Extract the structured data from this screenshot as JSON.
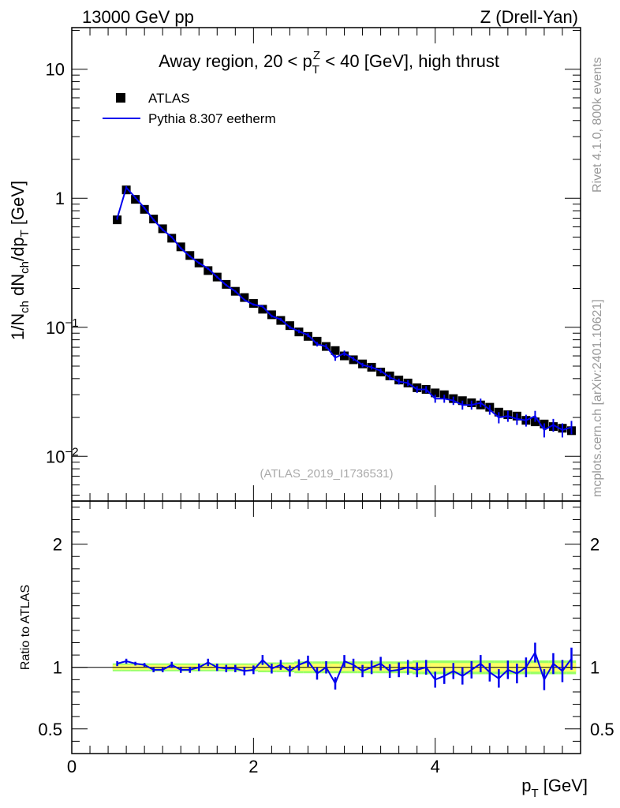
{
  "header": {
    "energy_label": "13000 GeV pp",
    "process_label": "Z (Drell-Yan)"
  },
  "side_labels": {
    "rivet": "Rivet 4.1.0,  800k events",
    "mcplots": "mcplots.cern.ch [arXiv:2401.10621]"
  },
  "watermark": "(ATLAS_2019_I1736531)",
  "colors": {
    "mc": "#0000ee",
    "band_inner": "#ffff66",
    "band_outer": "#99ff66",
    "data": "#000000"
  },
  "chart_data": [
    {
      "type": "scatter",
      "panel": "main",
      "title": "Away region, 20 < pTZ < 40 [GeV], high thrust",
      "title_parts": {
        "pre": "Away region, 20 < p",
        "sub": "T",
        "sup": "Z",
        "post": " < 40 [GeV], high thrust"
      },
      "ylabel": "1/Nch dNch/dpT [GeV]",
      "ylabel_parts": {
        "a": "1/N",
        "a_sub": "ch",
        "b": " dN",
        "b_sub": "ch",
        "c": "/dp",
        "c_sub": "T",
        "d": " [GeV]"
      },
      "yscale": "log",
      "ylim": [
        0.0045,
        21
      ],
      "xlim": [
        0,
        5.6
      ],
      "y_ticks": [
        {
          "value": 10,
          "label": "10"
        },
        {
          "value": 1,
          "label": "1"
        },
        {
          "value": 0.1,
          "label": "10",
          "exp": "−1"
        },
        {
          "value": 0.01,
          "label": "10",
          "exp": "−2"
        }
      ],
      "legend": [
        {
          "name": "ATLAS",
          "style": "marker"
        },
        {
          "name": "Pythia 8.307 eetherm",
          "style": "line"
        }
      ],
      "x": [
        0.5,
        0.6,
        0.7,
        0.8,
        0.9,
        1.0,
        1.1,
        1.2,
        1.3,
        1.4,
        1.5,
        1.6,
        1.7,
        1.8,
        1.9,
        2.0,
        2.1,
        2.2,
        2.3,
        2.4,
        2.5,
        2.6,
        2.7,
        2.8,
        2.9,
        3.0,
        3.1,
        3.2,
        3.3,
        3.4,
        3.5,
        3.6,
        3.7,
        3.8,
        3.9,
        4.0,
        4.1,
        4.2,
        4.3,
        4.4,
        4.5,
        4.6,
        4.7,
        4.8,
        4.9,
        5.0,
        5.1,
        5.2,
        5.3,
        5.4,
        5.5
      ],
      "series": [
        {
          "name": "ATLAS",
          "values": [
            0.68,
            1.16,
            0.98,
            0.82,
            0.69,
            0.58,
            0.49,
            0.42,
            0.36,
            0.315,
            0.275,
            0.245,
            0.215,
            0.19,
            0.17,
            0.153,
            0.138,
            0.125,
            0.113,
            0.103,
            0.092,
            0.085,
            0.078,
            0.071,
            0.066,
            0.06,
            0.056,
            0.052,
            0.049,
            0.045,
            0.042,
            0.039,
            0.037,
            0.034,
            0.033,
            0.031,
            0.03,
            0.028,
            0.027,
            0.026,
            0.025,
            0.024,
            0.022,
            0.021,
            0.0205,
            0.019,
            0.0185,
            0.0178,
            0.017,
            0.0165,
            0.0158
          ]
        },
        {
          "name": "Pythia 8.307 eetherm",
          "values": [
            0.7,
            1.21,
            1.01,
            0.84,
            0.68,
            0.57,
            0.5,
            0.41,
            0.355,
            0.315,
            0.285,
            0.245,
            0.212,
            0.19,
            0.163,
            0.15,
            0.145,
            0.122,
            0.115,
            0.1,
            0.093,
            0.087,
            0.074,
            0.071,
            0.058,
            0.063,
            0.057,
            0.051,
            0.049,
            0.046,
            0.041,
            0.038,
            0.037,
            0.033,
            0.033,
            0.028,
            0.028,
            0.027,
            0.025,
            0.025,
            0.026,
            0.023,
            0.02,
            0.0205,
            0.0195,
            0.019,
            0.0205,
            0.016,
            0.0175,
            0.016,
            0.0168
          ],
          "errors": [
            0.02,
            0.03,
            0.02,
            0.02,
            0.015,
            0.012,
            0.01,
            0.008,
            0.007,
            0.006,
            0.006,
            0.005,
            0.004,
            0.004,
            0.003,
            0.003,
            0.003,
            0.003,
            0.003,
            0.003,
            0.003,
            0.003,
            0.003,
            0.003,
            0.003,
            0.003,
            0.002,
            0.002,
            0.002,
            0.002,
            0.002,
            0.002,
            0.002,
            0.002,
            0.002,
            0.002,
            0.002,
            0.002,
            0.002,
            0.002,
            0.002,
            0.002,
            0.002,
            0.002,
            0.002,
            0.002,
            0.002,
            0.002,
            0.002,
            0.002,
            0.002
          ]
        }
      ]
    },
    {
      "type": "line",
      "panel": "ratio",
      "xlabel": "pT [GeV]",
      "xlabel_parts": {
        "main": "p",
        "sub": "T",
        "rest": " [GeV]"
      },
      "ylabel": "Ratio to ATLAS",
      "ylim": [
        0.3,
        2.35
      ],
      "xlim": [
        0,
        5.6
      ],
      "x_ticks": [
        0,
        2,
        4
      ],
      "y_ticks": [
        {
          "value": 0.5,
          "label": "0.5"
        },
        {
          "value": 1,
          "label": "1"
        },
        {
          "value": 2,
          "label": "2"
        }
      ],
      "x": [
        0.5,
        0.6,
        0.7,
        0.8,
        0.9,
        1.0,
        1.1,
        1.2,
        1.3,
        1.4,
        1.5,
        1.6,
        1.7,
        1.8,
        1.9,
        2.0,
        2.1,
        2.2,
        2.3,
        2.4,
        2.5,
        2.6,
        2.7,
        2.8,
        2.9,
        3.0,
        3.1,
        3.2,
        3.3,
        3.4,
        3.5,
        3.6,
        3.7,
        3.8,
        3.9,
        4.0,
        4.1,
        4.2,
        4.3,
        4.4,
        4.5,
        4.6,
        4.7,
        4.8,
        4.9,
        5.0,
        5.1,
        5.2,
        5.3,
        5.4,
        5.5
      ],
      "ratio": [
        1.03,
        1.05,
        1.03,
        1.02,
        0.98,
        0.98,
        1.02,
        0.98,
        0.98,
        1.0,
        1.04,
        1.0,
        0.99,
        0.99,
        0.97,
        0.98,
        1.06,
        0.99,
        1.02,
        0.97,
        1.02,
        1.05,
        0.95,
        1.0,
        0.87,
        1.05,
        1.02,
        0.97,
        1.0,
        1.03,
        0.97,
        0.98,
        1.0,
        0.98,
        1.0,
        0.9,
        0.93,
        0.97,
        0.93,
        0.98,
        1.03,
        0.96,
        0.91,
        0.98,
        0.95,
        1.0,
        1.12,
        0.9,
        1.03,
        0.97,
        1.07
      ],
      "ratio_errors": [
        0.02,
        0.02,
        0.015,
        0.015,
        0.02,
        0.02,
        0.025,
        0.025,
        0.025,
        0.03,
        0.03,
        0.03,
        0.03,
        0.03,
        0.035,
        0.035,
        0.04,
        0.04,
        0.04,
        0.045,
        0.045,
        0.045,
        0.05,
        0.05,
        0.05,
        0.05,
        0.05,
        0.05,
        0.055,
        0.055,
        0.055,
        0.06,
        0.06,
        0.06,
        0.06,
        0.065,
        0.065,
        0.065,
        0.07,
        0.07,
        0.07,
        0.075,
        0.075,
        0.075,
        0.08,
        0.08,
        0.08,
        0.085,
        0.085,
        0.09,
        0.09
      ],
      "band": [
        0.02,
        0.02,
        0.02,
        0.02,
        0.02,
        0.02,
        0.02,
        0.02,
        0.02,
        0.02,
        0.02,
        0.02,
        0.02,
        0.02,
        0.02,
        0.02,
        0.025,
        0.025,
        0.025,
        0.025,
        0.03,
        0.03,
        0.03,
        0.03,
        0.03,
        0.03,
        0.03,
        0.03,
        0.03,
        0.03,
        0.03,
        0.03,
        0.03,
        0.035,
        0.035,
        0.035,
        0.035,
        0.035,
        0.035,
        0.035,
        0.035,
        0.035,
        0.035,
        0.035,
        0.035,
        0.035,
        0.035,
        0.035,
        0.035,
        0.035,
        0.035
      ]
    }
  ]
}
